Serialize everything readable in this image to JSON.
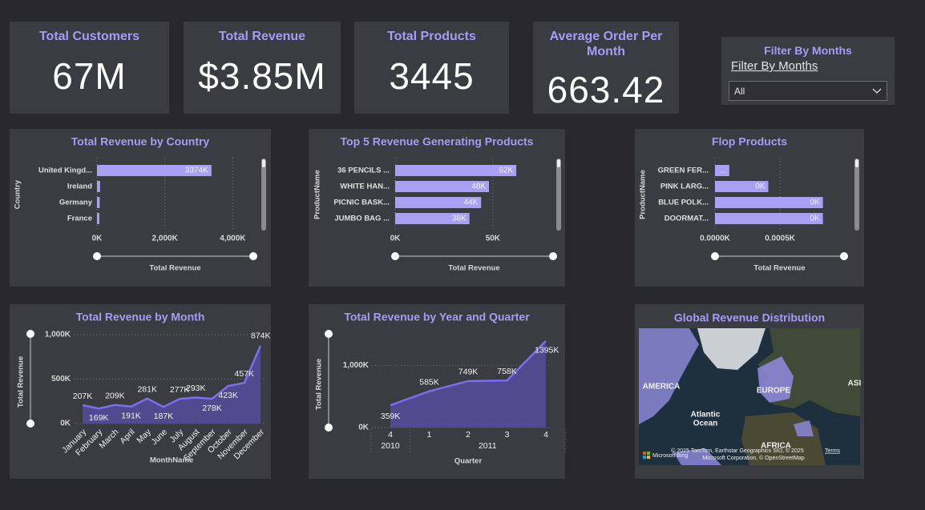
{
  "cards": [
    {
      "title": "Total Customers",
      "value": "67M"
    },
    {
      "title": "Total Revenue",
      "value": "$3.85M"
    },
    {
      "title": "Total Products",
      "value": "3445"
    },
    {
      "title": "Average Order Per Month",
      "value": "663.42"
    }
  ],
  "filter": {
    "title": "Filter By Months",
    "label": "Filter By Months",
    "selected": "All"
  },
  "chart_data": [
    {
      "type": "bar",
      "orientation": "horizontal",
      "title": "Total Revenue by Country",
      "x_label": "Total Revenue",
      "y_label": "Country",
      "categories": [
        "United Kingd...",
        "Ireland",
        "Germany",
        "France"
      ],
      "values": [
        3374,
        90,
        80,
        70
      ],
      "value_labels": [
        "3374K",
        null,
        null,
        null
      ],
      "color": "#a99ff5",
      "xlim": [
        0,
        4700
      ],
      "xticks": [
        {
          "value": 0,
          "label": "0K"
        },
        {
          "value": 2000,
          "label": "2,000K"
        },
        {
          "value": 4000,
          "label": "4,000K"
        }
      ],
      "grid": true
    },
    {
      "type": "bar",
      "orientation": "horizontal",
      "title": "Top 5 Revenue Generating Products",
      "x_label": "Total Revenue",
      "y_label": "ProductName",
      "categories": [
        "36 PENCILS ...",
        "WHITE HAN...",
        "PICNIC BASK...",
        "JUMBO BAG ..."
      ],
      "values": [
        62,
        48,
        44,
        38
      ],
      "value_labels": [
        "62K",
        "48K",
        "44K",
        "38K"
      ],
      "color": "#a99ff5",
      "xlim": [
        0,
        80
      ],
      "xticks": [
        {
          "value": 0,
          "label": "0K"
        },
        {
          "value": 50,
          "label": "50K"
        }
      ],
      "grid": true
    },
    {
      "type": "bar",
      "orientation": "horizontal",
      "title": "Flop Products",
      "x_label": "Total Revenue",
      "y_label": "ProductName",
      "categories": [
        "GREEN FER...",
        "PINK LARG...",
        "BLUE POLK...",
        "DOORMAT..."
      ],
      "values": [
        0.00011,
        0.00041,
        0.00083,
        0.00083
      ],
      "value_labels": [
        "...",
        "0K",
        "0K",
        "0K"
      ],
      "color": "#a99ff5",
      "xlim": [
        0,
        0.0009
      ],
      "xticks": [
        {
          "value": 0,
          "label": "0.0000K"
        },
        {
          "value": 0.0005,
          "label": "0.0005K"
        }
      ],
      "grid": true
    },
    {
      "type": "area",
      "title": "Total Revenue by Month",
      "x_label": "MonthName",
      "y_label": "Total Revenue",
      "categories": [
        "January",
        "February",
        "March",
        "April",
        "May",
        "June",
        "July",
        "August",
        "September",
        "October",
        "November",
        "December"
      ],
      "values": [
        207,
        169,
        209,
        191,
        281,
        187,
        277,
        293,
        278,
        423,
        457,
        874
      ],
      "value_labels": [
        "207K",
        "169K",
        "209K",
        "191K",
        "281K",
        "187K",
        "277K",
        "293K",
        "278K",
        "423K",
        "457K",
        "874K"
      ],
      "color": "#7b6ef0",
      "fill": "#514a8e",
      "ylim": [
        0,
        1080
      ],
      "yticks": [
        {
          "value": 0,
          "label": "0K"
        },
        {
          "value": 500,
          "label": "500K"
        },
        {
          "value": 1000,
          "label": "1,000K"
        }
      ],
      "grid": true
    },
    {
      "type": "area",
      "title": "Total Revenue by Year and Quarter",
      "x_label": "Quarter",
      "y_label": "Total Revenue",
      "categories": [
        "4",
        "1",
        "2",
        "3",
        "4"
      ],
      "years": [
        "2010",
        "2011",
        null,
        null,
        null
      ],
      "values": [
        359,
        585,
        749,
        758,
        1395
      ],
      "value_labels": [
        "359K",
        "585K",
        "749K",
        "758K",
        "1395K"
      ],
      "color": "#7b6ef0",
      "fill": "#514a8e",
      "ylim": [
        0,
        1600
      ],
      "yticks": [
        {
          "value": 0,
          "label": "0K"
        },
        {
          "value": 1000,
          "label": "1,000K"
        }
      ],
      "grid": true
    }
  ],
  "map": {
    "title": "Global Revenue Distribution",
    "labels": [
      "AMERICA",
      "EUROPE",
      "ASI",
      "Atlantic",
      "Ocean",
      "AFRICA"
    ],
    "attribution": [
      "© 2025 TomTom, Earthstar Geographics SIO, © 2025",
      "Microsoft Corporation, © OpenStreetMap"
    ],
    "terms": "Terms",
    "brand": "Microsoft Bing"
  }
}
